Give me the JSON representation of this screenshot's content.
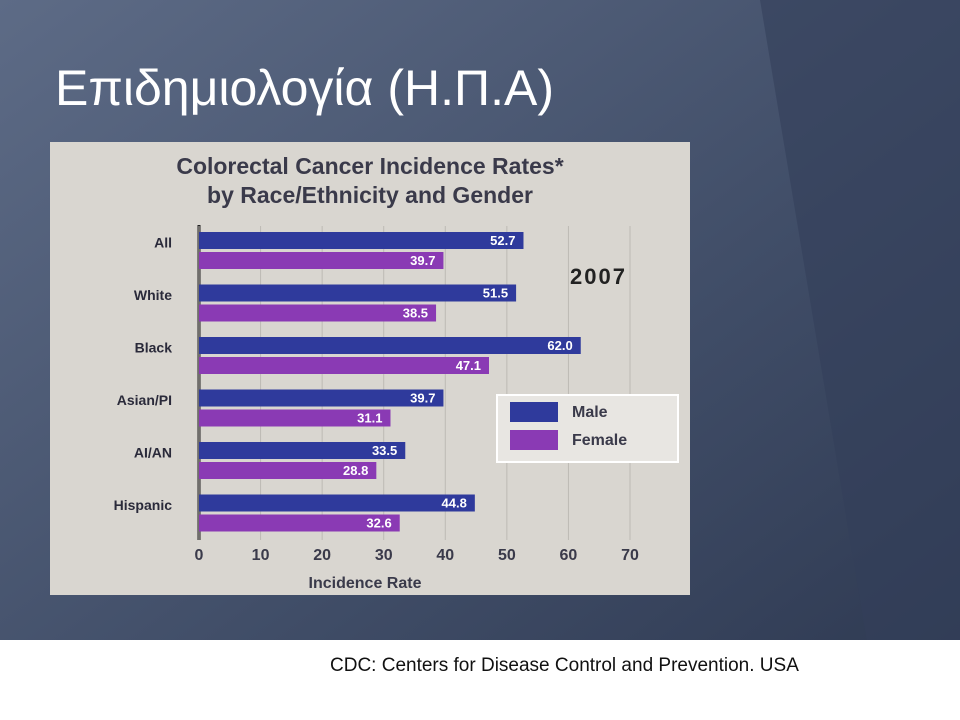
{
  "slide": {
    "title": "Επιδημιολογία (Η.Π.Α)",
    "year_note": "2007",
    "footer": "CDC: Centers for Disease Control and Prevention. USA"
  },
  "chart_data": {
    "type": "hbar",
    "title": "Colorectal Cancer Incidence Rates*",
    "subtitle": "by Race/Ethnicity and Gender",
    "x_label": "Incidence Rate",
    "categories": [
      "All",
      "White",
      "Black",
      "Asian/PI",
      "AI/AN",
      "Hispanic"
    ],
    "series": [
      {
        "name": "Male",
        "color": "#2f3a9c",
        "values": [
          52.7,
          51.5,
          62.0,
          39.7,
          33.5,
          44.8
        ],
        "value_labels": [
          "52.7",
          "51.5",
          "62.0",
          "39.7",
          "33.5",
          "44.8"
        ]
      },
      {
        "name": "Female",
        "color": "#8a3ab4",
        "values": [
          39.7,
          38.5,
          47.1,
          31.1,
          28.8,
          32.6
        ]
      }
    ],
    "xlim": [
      0,
      70
    ],
    "xticks": [
      0,
      10,
      20,
      30,
      40,
      50,
      60,
      70
    ],
    "grid": true,
    "legend": "right"
  }
}
